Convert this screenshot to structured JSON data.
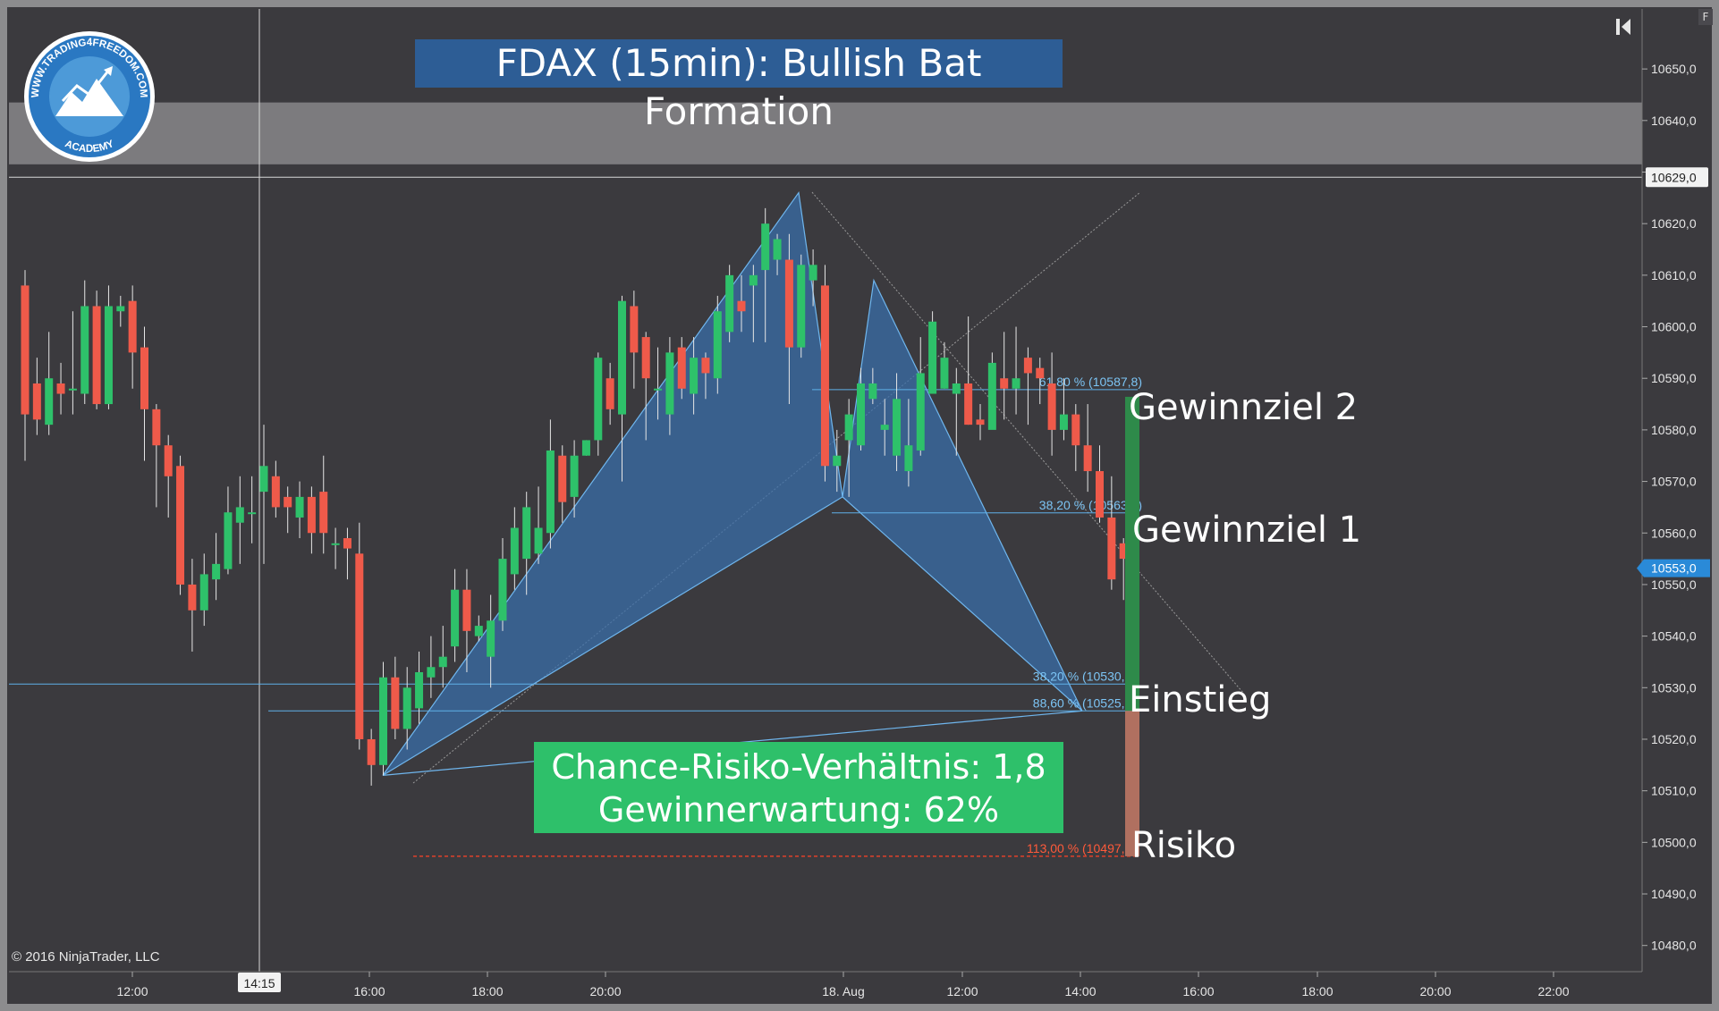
{
  "title": "FDAX (15min): Bullish Bat Formation",
  "copyright": "© 2016 NinjaTrader, LLC",
  "logo": {
    "text_top": "WWW.TRADING4FREEDOM.COM",
    "text_bottom": "ACADEMY"
  },
  "corner_button": "F",
  "crv_box": {
    "line1": "Chance-Risiko-Verhältnis: 1,8",
    "line2": "Gewinnerwartung: 62%"
  },
  "labels": {
    "target2": "Gewinnziel 2",
    "target1": "Gewinnziel 1",
    "entry": "Einstieg",
    "risk": "Risiko"
  },
  "colors": {
    "background": "#3b3a3e",
    "bull": "#2ec16a",
    "bear": "#ef5a4a",
    "pattern_fill": "#3a6ea8",
    "fib_line": "#5fb0e8",
    "stop_line": "#e0402a",
    "target_bar": "#2e8a4a",
    "risk_bar": "#b07060"
  },
  "chart_data": {
    "type": "candlestick",
    "ylim": [
      10477,
      10657
    ],
    "y_ticks": [
      "10480,0",
      "10490,0",
      "10500,0",
      "10510,0",
      "10520,0",
      "10530,0",
      "10540,0",
      "10550,0",
      "10560,0",
      "10570,0",
      "10580,0",
      "10590,0",
      "10600,0",
      "10610,0",
      "10620,0",
      "10630,0",
      "10640,0",
      "10650,0"
    ],
    "x_ticks": [
      "12:00",
      "16:00",
      "18:00",
      "20:00",
      "18. Aug",
      "12:00",
      "14:00",
      "16:00",
      "18:00",
      "20:00",
      "22:00"
    ],
    "crosshair": {
      "time_label": "14:15",
      "price_label": "10629,0",
      "price": 10629.0
    },
    "last_price": {
      "label": "10553,0",
      "value": 10553.0
    },
    "resistance_zone": [
      10631.5,
      10643.5
    ],
    "fib_levels": [
      {
        "label": "61,80 % (10587,8)",
        "value": 10587.8
      },
      {
        "label": "38,20 % (10563,9)",
        "value": 10563.9
      },
      {
        "label": "38,20 % (10530,7)",
        "value": 10530.7
      },
      {
        "label": "88,60 % (10525,5)",
        "value": 10525.5
      },
      {
        "label": "113,00 % (10497,3)",
        "value": 10497.3
      }
    ],
    "pattern_points": {
      "X": 10513,
      "A": 10626,
      "B": 10567,
      "C": 10609,
      "D": 10525.5
    },
    "candles": [
      [
        10608,
        10583,
        10611,
        10574
      ],
      [
        10589,
        10582,
        10594,
        10579
      ],
      [
        10581,
        10590,
        10599,
        10579
      ],
      [
        10589,
        10587,
        10593,
        10583
      ],
      [
        10588,
        10588,
        10603,
        10583
      ],
      [
        10587,
        10604,
        10609,
        10585
      ],
      [
        10604,
        10585,
        10607,
        10584
      ],
      [
        10585,
        10604,
        10608,
        10584
      ],
      [
        10603,
        10604,
        10606,
        10600
      ],
      [
        10605,
        10595,
        10608,
        10588
      ],
      [
        10596,
        10584,
        10600,
        10574
      ],
      [
        10584,
        10577,
        10585,
        10565
      ],
      [
        10577,
        10571,
        10579,
        10563
      ],
      [
        10573,
        10550,
        10575,
        10548
      ],
      [
        10550,
        10545,
        10555,
        10537
      ],
      [
        10545,
        10552,
        10556,
        10542
      ],
      [
        10551,
        10554,
        10560,
        10547
      ],
      [
        10553,
        10564,
        10569,
        10552
      ],
      [
        10562,
        10565,
        10571,
        10554
      ],
      [
        10564,
        10564,
        10571,
        10558
      ],
      [
        10568,
        10573,
        10581,
        10554
      ],
      [
        10571,
        10565,
        10574,
        10563
      ],
      [
        10567,
        10565,
        10569,
        10560
      ],
      [
        10563,
        10567,
        10570,
        10559
      ],
      [
        10567,
        10560,
        10569,
        10556
      ],
      [
        10568,
        10560,
        10575,
        10556
      ],
      [
        10558,
        10558,
        10561,
        10553
      ],
      [
        10559,
        10557,
        10561,
        10551
      ],
      [
        10556,
        10520,
        10562,
        10518
      ],
      [
        10520,
        10515,
        10522,
        10511
      ],
      [
        10515,
        10532,
        10535,
        10513
      ],
      [
        10532,
        10522,
        10536,
        10520
      ],
      [
        10522,
        10530,
        10534,
        10518
      ],
      [
        10526,
        10533,
        10537,
        10523
      ],
      [
        10532,
        10534,
        10540,
        10528
      ],
      [
        10534,
        10536,
        10542,
        10530
      ],
      [
        10538,
        10549,
        10553,
        10535
      ],
      [
        10549,
        10541,
        10553,
        10533
      ],
      [
        10540,
        10542,
        10544,
        10539
      ],
      [
        10536,
        10543,
        10548,
        10530
      ],
      [
        10543,
        10555,
        10559,
        10541
      ],
      [
        10552,
        10561,
        10565,
        10549
      ],
      [
        10555,
        10565,
        10568,
        10548
      ],
      [
        10556,
        10561,
        10569,
        10554
      ],
      [
        10560,
        10576,
        10582,
        10557
      ],
      [
        10575,
        10566,
        10577,
        10562
      ],
      [
        10567,
        10575,
        10578,
        10563
      ],
      [
        10575,
        10578,
        10578,
        10575
      ],
      [
        10578,
        10594,
        10595,
        10575
      ],
      [
        10590,
        10584,
        10593,
        10581
      ],
      [
        10583,
        10605,
        10606,
        10570
      ],
      [
        10604,
        10595,
        10607,
        10588
      ],
      [
        10598,
        10590,
        10599,
        10578
      ],
      [
        10588,
        10588,
        10596,
        10582
      ],
      [
        10583,
        10595,
        10598,
        10579
      ],
      [
        10596,
        10588,
        10598,
        10586
      ],
      [
        10587,
        10594,
        10598,
        10583
      ],
      [
        10594,
        10591,
        10595,
        10586
      ],
      [
        10590,
        10603,
        10606,
        10587
      ],
      [
        10599,
        10610,
        10612,
        10597
      ],
      [
        10605,
        10603,
        10610,
        10599
      ],
      [
        10608,
        10610,
        10612,
        10597
      ],
      [
        10611,
        10620,
        10623,
        10597
      ],
      [
        10613,
        10617,
        10618,
        10610
      ],
      [
        10613,
        10596,
        10618,
        10585
      ],
      [
        10596,
        10612,
        10614,
        10594
      ],
      [
        10609,
        10612,
        10615,
        10604
      ],
      [
        10608,
        10573,
        10612,
        10570
      ],
      [
        10573,
        10575,
        10580,
        10568
      ],
      [
        10578,
        10583,
        10586,
        10567
      ],
      [
        10577,
        10589,
        10592,
        10576
      ],
      [
        10586,
        10589,
        10592,
        10585
      ],
      [
        10580,
        10581,
        10586,
        10575
      ],
      [
        10575,
        10586,
        10591,
        10572
      ],
      [
        10572,
        10577,
        10586,
        10569
      ],
      [
        10576,
        10591,
        10598,
        10575
      ],
      [
        10587,
        10601,
        10603,
        10592
      ],
      [
        10588,
        10594,
        10597,
        10588
      ],
      [
        10587,
        10589,
        10592,
        10575
      ],
      [
        10589,
        10581,
        10602,
        10581
      ],
      [
        10582,
        10581,
        10585,
        10578
      ],
      [
        10580,
        10593,
        10595,
        10583
      ],
      [
        10590,
        10588,
        10599,
        10582
      ],
      [
        10588,
        10590,
        10600,
        10583
      ],
      [
        10594,
        10591,
        10596,
        10581
      ],
      [
        10592,
        10590,
        10594,
        10585
      ],
      [
        10589,
        10580,
        10595,
        10575
      ],
      [
        10580,
        10583,
        10590,
        10578
      ],
      [
        10583,
        10577,
        10585,
        10572
      ],
      [
        10577,
        10572,
        10585,
        10568
      ],
      [
        10572,
        10563,
        10577,
        10562
      ],
      [
        10563,
        10551,
        10571,
        10549
      ],
      [
        10558,
        10555,
        10559,
        10547
      ]
    ]
  }
}
